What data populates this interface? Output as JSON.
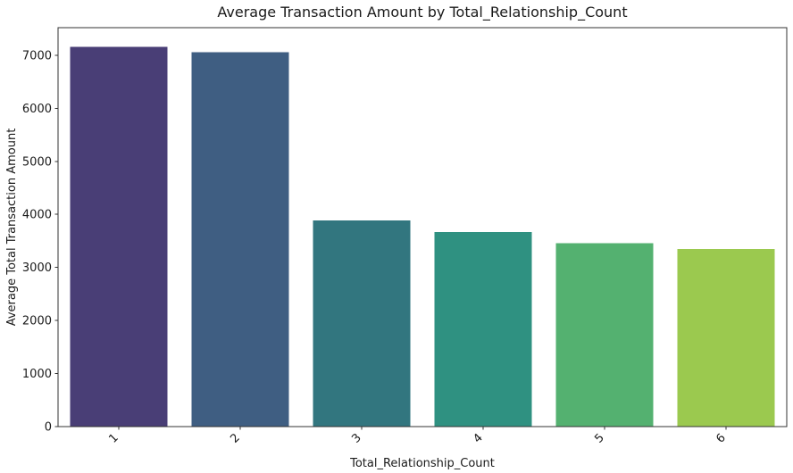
{
  "chart_data": {
    "type": "bar",
    "title": "Average Transaction Amount by Total_Relationship_Count",
    "xlabel": "Total_Relationship_Count",
    "ylabel": "Average Total Transaction Amount",
    "categories": [
      "1",
      "2",
      "3",
      "4",
      "5",
      "6"
    ],
    "values": [
      7160,
      7060,
      3890,
      3670,
      3460,
      3350
    ],
    "bar_colors": [
      "#493e76",
      "#3f5e82",
      "#32767f",
      "#2f9181",
      "#54b170",
      "#9bc94f"
    ],
    "ylim": [
      0,
      7520
    ],
    "yticks": [
      0,
      1000,
      2000,
      3000,
      4000,
      5000,
      6000,
      7000
    ],
    "grid": false,
    "legend": null,
    "x_tick_rotation": 45,
    "spine_color": "#333333",
    "text_color": "#1a1a1a"
  }
}
